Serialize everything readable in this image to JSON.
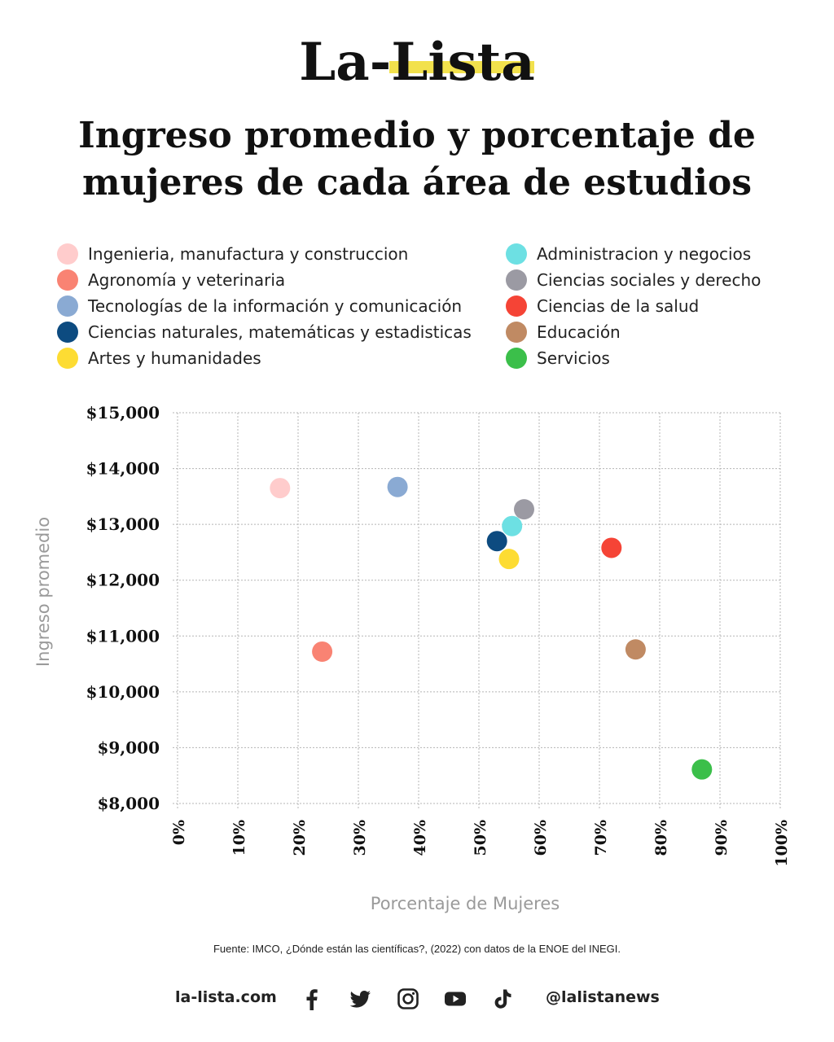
{
  "brand": {
    "name_part1": "La-",
    "name_part2": "Lista",
    "underline_color": "#f2e14c"
  },
  "title_lines": [
    "Ingreso promedio y porcentaje de",
    "mujeres de cada área de estudios"
  ],
  "source": "Fuente: IMCO, ¿Dónde están las científicas?, (2022) con datos de la ENOE del INEGI.",
  "footer": {
    "site": "la-lista.com",
    "handle": "@lalistanews",
    "icons": [
      "facebook-icon",
      "twitter-icon",
      "instagram-icon",
      "youtube-icon",
      "tiktok-icon"
    ]
  },
  "chart_data": {
    "type": "scatter",
    "title": "Ingreso promedio y porcentaje de mujeres de cada área de estudios",
    "xlabel": "Porcentaje de Mujeres",
    "ylabel": "Ingreso promedio",
    "xlim": [
      0,
      100
    ],
    "ylim": [
      8000,
      15000
    ],
    "xticks": [
      0,
      10,
      20,
      30,
      40,
      50,
      60,
      70,
      80,
      90,
      100
    ],
    "xtick_labels": [
      "0%",
      "10%",
      "20%",
      "30%",
      "40%",
      "50%",
      "60%",
      "70%",
      "80%",
      "90%",
      "100%"
    ],
    "yticks": [
      8000,
      9000,
      10000,
      11000,
      12000,
      13000,
      14000,
      15000
    ],
    "ytick_labels": [
      "$8,000",
      "$9,000",
      "$10,000",
      "$11,000",
      "$12,000",
      "$13,000",
      "$14,000",
      "$15,000"
    ],
    "grid": true,
    "legend_position": "top",
    "series": [
      {
        "name": "Ingenieria, manufactura y construccion",
        "color": "#ffcccc",
        "x": 17,
        "y": 13650
      },
      {
        "name": "Agronomía y veterinaria",
        "color": "#f98373",
        "x": 24,
        "y": 10720
      },
      {
        "name": "Tecnologías de la información y comunicación",
        "color": "#8aaad3",
        "x": 36.5,
        "y": 13670
      },
      {
        "name": "Ciencias naturales, matemáticas y estadisticas",
        "color": "#0d4b80",
        "x": 53,
        "y": 12700
      },
      {
        "name": "Artes y humanidades",
        "color": "#fddc33",
        "x": 55,
        "y": 12380
      },
      {
        "name": "Administracion y negocios",
        "color": "#6de0e3",
        "x": 55.5,
        "y": 12970
      },
      {
        "name": "Ciencias sociales y derecho",
        "color": "#9b9aa3",
        "x": 57.5,
        "y": 13270
      },
      {
        "name": "Ciencias de la salud",
        "color": "#f54436",
        "x": 72,
        "y": 12580
      },
      {
        "name": "Educación",
        "color": "#c08a63",
        "x": 76,
        "y": 10760
      },
      {
        "name": "Servicios",
        "color": "#3bbf4a",
        "x": 87,
        "y": 8610
      }
    ]
  }
}
